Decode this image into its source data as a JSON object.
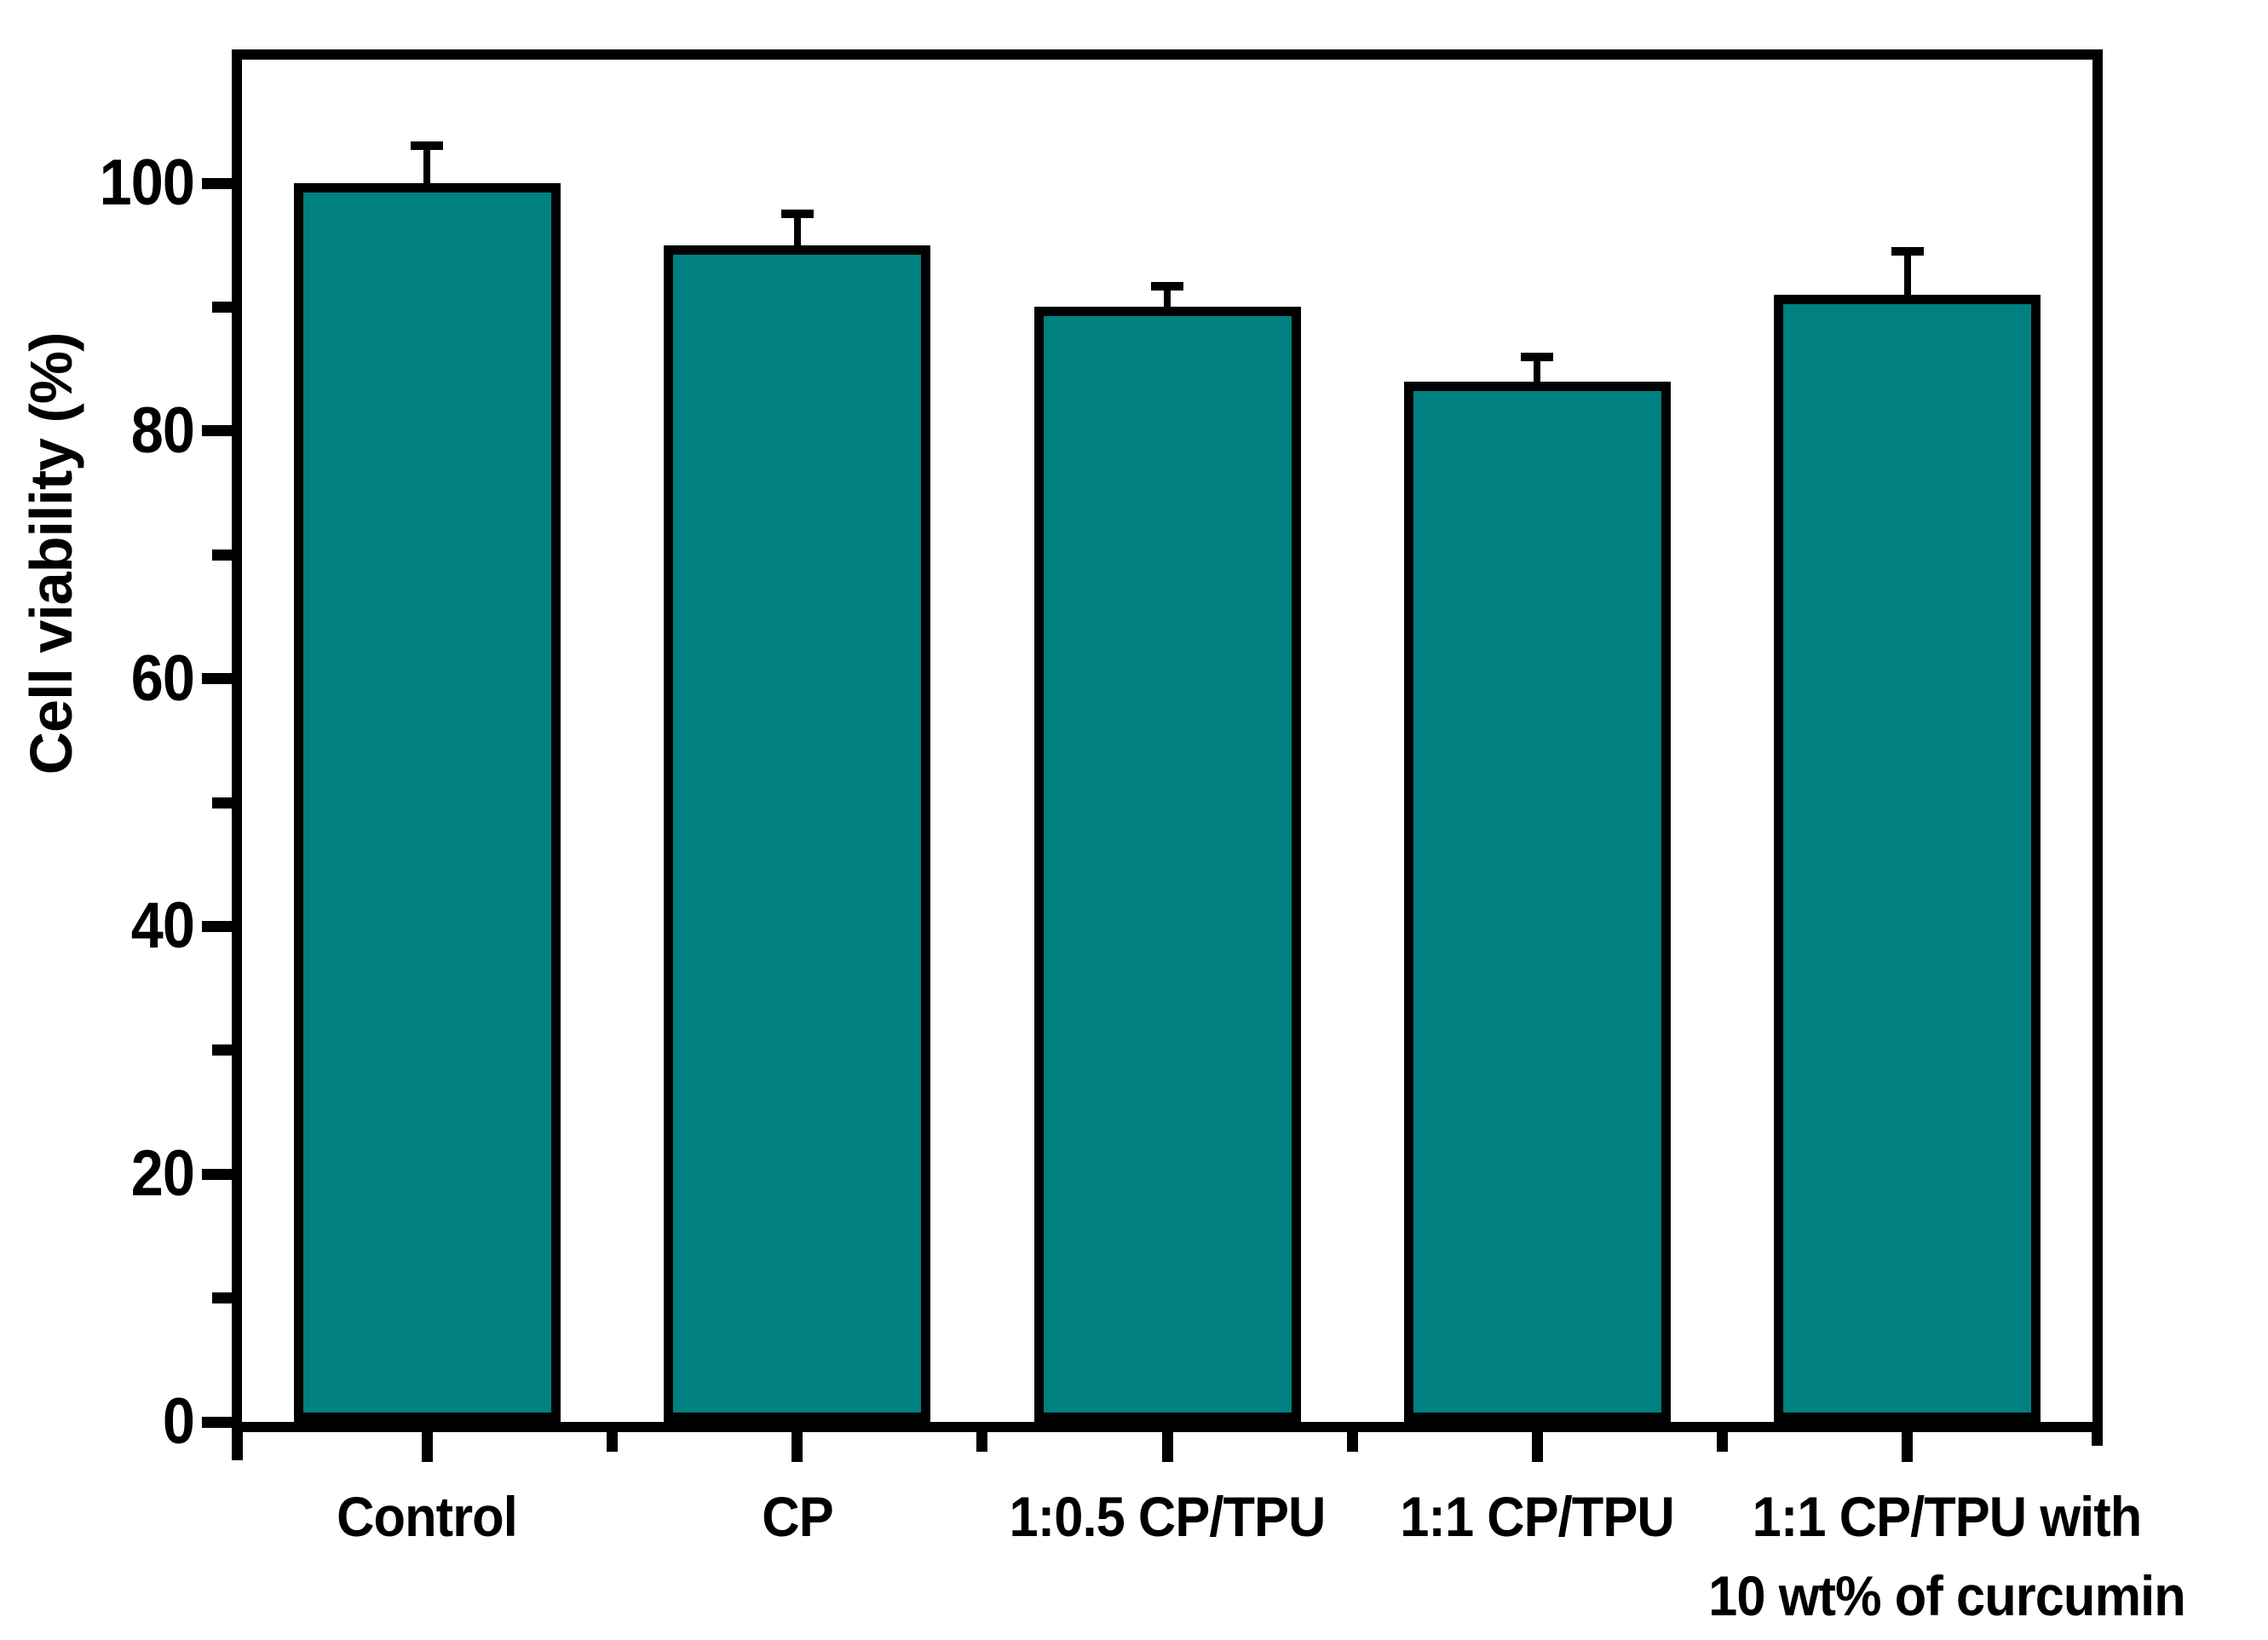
{
  "figure": {
    "background_color": "#ffffff",
    "axis_color": "#000000",
    "text_color": "#000000"
  },
  "chart_data": {
    "type": "bar",
    "title": "",
    "xlabel": "",
    "ylabel": "Cell viability (%)",
    "categories": [
      "Control",
      "CP",
      "1:0.5 CP/TPU",
      "1:1 CP/TPU",
      "1:1 CP/TPU with 10 wt% of curcumin"
    ],
    "label_lines": [
      [
        "Control"
      ],
      [
        "CP"
      ],
      [
        "1:0.5 CP/TPU"
      ],
      [
        "1:1 CP/TPU"
      ],
      [
        "1:1 CP/TPU with",
        "10 wt% of curcumin"
      ]
    ],
    "values": [
      100,
      95,
      90,
      84,
      91
    ],
    "errors": [
      3.0,
      2.5,
      1.7,
      2.0,
      3.5
    ],
    "error_bar_style": "upper-half, capped",
    "ylim": [
      0,
      110
    ],
    "yticks": [
      0,
      20,
      40,
      60,
      80,
      100
    ],
    "y_minor_ticks": [
      10,
      30,
      50,
      70,
      90
    ],
    "grid": "off",
    "legend": "none",
    "bar_color": "#008080",
    "bar_border_color": "#000000",
    "error_bar_color": "#000000"
  }
}
